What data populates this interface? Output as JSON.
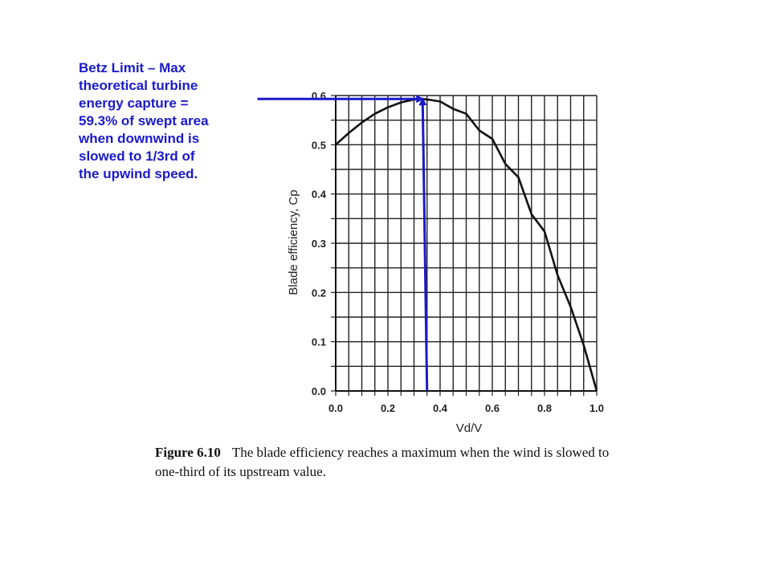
{
  "annotation": {
    "lines": [
      "Betz Limit – Max",
      "theoretical turbine",
      "energy capture =",
      "59.3% of swept area",
      "when downwind is",
      "slowed to 1/3rd of",
      "the upwind speed."
    ],
    "color": "#1a1acc"
  },
  "chart_data": {
    "type": "line",
    "xlabel": "Vd/V",
    "ylabel": "Blade efficiency, Cp",
    "xlim": [
      0.0,
      1.0
    ],
    "ylim": [
      0.0,
      0.6
    ],
    "x_ticks": [
      "0.0",
      "0.2",
      "0.4",
      "0.6",
      "0.8",
      "1.0"
    ],
    "y_ticks": [
      "0.0",
      "0.1",
      "0.2",
      "0.3",
      "0.4",
      "0.5",
      "0.6"
    ],
    "grid": true,
    "series": [
      {
        "x": [
          0.0,
          0.05,
          0.1,
          0.15,
          0.2,
          0.25,
          0.3,
          0.333,
          0.35,
          0.4,
          0.45,
          0.5,
          0.55,
          0.6,
          0.65,
          0.7,
          0.75,
          0.8,
          0.85,
          0.9,
          0.95,
          1.0
        ],
        "y": [
          0.5,
          0.524,
          0.545,
          0.563,
          0.576,
          0.586,
          0.592,
          0.593,
          0.592,
          0.588,
          0.573,
          0.563,
          0.529,
          0.512,
          0.461,
          0.434,
          0.359,
          0.324,
          0.235,
          0.171,
          0.093,
          0.0
        ]
      }
    ],
    "annotation_arrows": [
      {
        "from": [
          0.35,
          0.0
        ],
        "to": [
          0.333,
          0.593
        ]
      },
      {
        "from": [
          -0.3,
          0.593
        ],
        "to": [
          0.333,
          0.593
        ]
      }
    ]
  },
  "caption": {
    "label": "Figure 6.10",
    "line1": "The blade efficiency reaches a maximum when the wind is slowed to",
    "line2": "one-third of its upstream value."
  }
}
